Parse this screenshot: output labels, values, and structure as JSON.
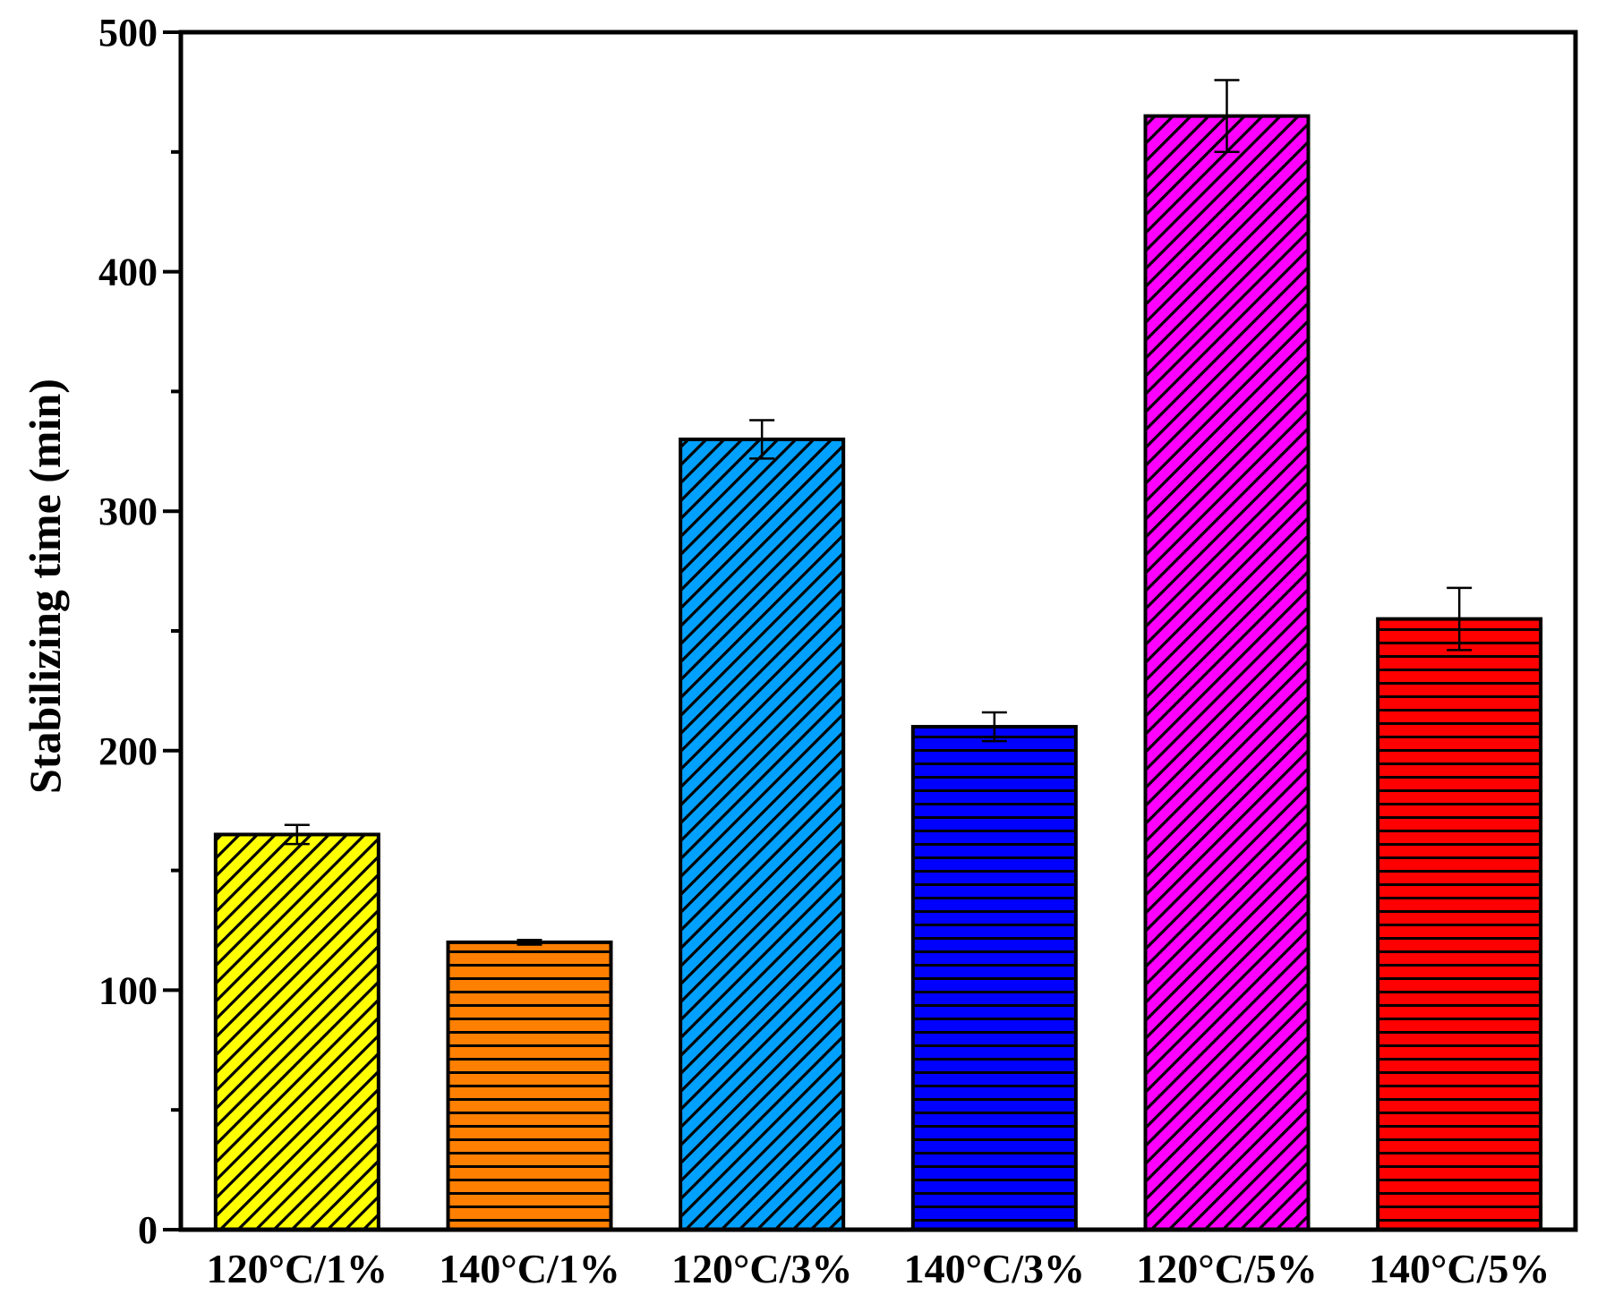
{
  "chart_data": {
    "type": "bar",
    "title": "",
    "xlabel": "",
    "ylabel": "Stabilizing time (min)",
    "ylim": [
      0,
      500
    ],
    "yticks": [
      0,
      100,
      200,
      300,
      400,
      500
    ],
    "categories": [
      "120°C/1%",
      "140°C/1%",
      "120°C/3%",
      "140°C/3%",
      "120°C/5%",
      "140°C/5%"
    ],
    "values": [
      165,
      120,
      330,
      210,
      465,
      255
    ],
    "errors": [
      4,
      1,
      8,
      6,
      15,
      13
    ],
    "colors": [
      "#ffff00",
      "#ff8000",
      "#00a0ff",
      "#0000ff",
      "#ff00ff",
      "#ff0000"
    ],
    "patterns": [
      "diagonal",
      "horizontal",
      "diagonal",
      "horizontal",
      "diagonal",
      "horizontal"
    ],
    "grid": false,
    "legend": "none"
  }
}
